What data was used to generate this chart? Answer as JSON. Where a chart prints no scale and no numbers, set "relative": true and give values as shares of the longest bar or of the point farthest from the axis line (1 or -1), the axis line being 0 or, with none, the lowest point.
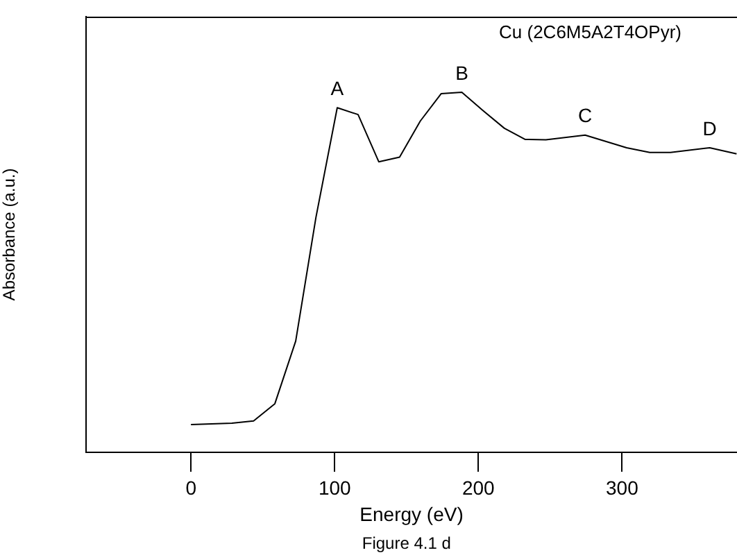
{
  "chart_data": {
    "type": "line",
    "title": "Cu (2C6M5A2T4OPyr)",
    "xlabel": "Energy (eV)",
    "ylabel": "Absorbance (a.u.)",
    "relative": true,
    "xlim": [
      -73,
      380
    ],
    "xticks": [
      0,
      100,
      200,
      300
    ],
    "grid": false,
    "legend": false,
    "marker": "none",
    "line_style": "solid",
    "x": [
      0,
      28.5,
      43.6,
      58.4,
      72.9,
      87.0,
      101.8,
      116.3,
      130.7,
      145.2,
      159.6,
      174.1,
      188.5,
      203.3,
      218.1,
      232.5,
      247.0,
      274.3,
      303.2,
      319.3,
      333.7,
      361.0,
      379.7
    ],
    "series": [
      {
        "color": "#000000",
        "values": [
          0.077,
          0.081,
          0.087,
          0.135,
          0.309,
          0.653,
          0.957,
          0.938,
          0.807,
          0.82,
          0.92,
          0.996,
          1.0,
          0.949,
          0.9,
          0.869,
          0.868,
          0.881,
          0.846,
          0.833,
          0.833,
          0.846,
          0.829
        ]
      }
    ],
    "annotations": [
      {
        "text": "A",
        "x": 101.8,
        "y": 0.957
      },
      {
        "text": "B",
        "x": 188.5,
        "y": 1.0
      },
      {
        "text": "C",
        "x": 274.3,
        "y": 0.881
      },
      {
        "text": "D",
        "x": 361.0,
        "y": 0.846
      },
      "Figure 4.1 d"
    ]
  }
}
